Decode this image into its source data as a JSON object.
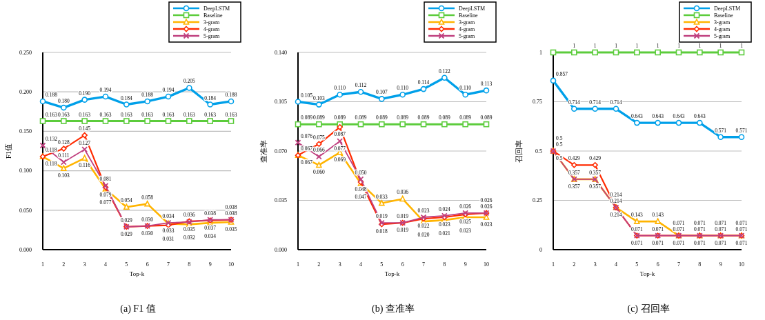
{
  "chart_data": [
    {
      "type": "line",
      "title": "(a) F1 值",
      "xlabel": "Top-k",
      "ylabel": "F1值",
      "categories": [
        "1",
        "2",
        "3",
        "4",
        "5",
        "6",
        "7",
        "8",
        "9",
        "10"
      ],
      "ylim": [
        0,
        0.25
      ],
      "yticks": [
        {
          "value": 0,
          "label": "0.000"
        },
        {
          "value": 0.05,
          "label": "0.050"
        },
        {
          "value": 0.1,
          "label": "0.100"
        },
        {
          "value": 0.15,
          "label": "0.150"
        },
        {
          "value": 0.2,
          "label": "0.200"
        },
        {
          "value": 0.25,
          "label": "0.250"
        }
      ],
      "grid": "y",
      "legend": "top right",
      "series": [
        {
          "name": "DeepLSTM",
          "color": "#00a0e9",
          "marker": "circle",
          "values": [
            0.188,
            0.18,
            0.19,
            0.194,
            0.184,
            0.188,
            0.194,
            0.205,
            0.184,
            0.188
          ],
          "value_labels": [
            "0.188",
            "0.180",
            "0.190",
            "0.194",
            "0.184",
            "0.188",
            "0.194",
            "0.205",
            "0.184",
            "0.188"
          ]
        },
        {
          "name": "Baseline",
          "color": "#5ccc3c",
          "marker": "square",
          "values": [
            0.163,
            0.163,
            0.163,
            0.163,
            0.163,
            0.163,
            0.163,
            0.163,
            0.163,
            0.163
          ],
          "value_labels": [
            "0.163",
            "0.163",
            "0.163",
            "0.163",
            "0.163",
            "0.163",
            "0.163",
            "0.163",
            "0.163",
            "0.163"
          ]
        },
        {
          "name": "3-gram",
          "color": "#ffb400",
          "marker": "triangle",
          "values": [
            0.118,
            0.103,
            0.116,
            0.077,
            0.054,
            0.058,
            0.033,
            0.032,
            0.034,
            0.035
          ],
          "value_labels": [
            "0.118",
            "0.103",
            "0.116",
            "0.077",
            "0.054",
            "0.058",
            "0.033",
            "0.032",
            "0.034",
            "0.035"
          ]
        },
        {
          "name": "4-gram",
          "color": "#ff2a00",
          "marker": "diamond",
          "values": [
            0.118,
            0.128,
            0.145,
            0.079,
            0.029,
            0.03,
            0.031,
            0.036,
            0.037,
            0.038
          ],
          "value_labels": [
            "0.118",
            "0.128",
            "0.145",
            "0.079",
            "0.029",
            "0.030",
            "0.031",
            "0.036",
            "0.037",
            "0.038"
          ]
        },
        {
          "name": "5-gram",
          "color": "#c0407f",
          "marker": "cross",
          "values": [
            0.132,
            0.111,
            0.127,
            0.081,
            0.029,
            0.03,
            0.034,
            0.035,
            0.038,
            0.038
          ],
          "value_labels": [
            "0.132",
            "0.111",
            "0.127",
            "0.081",
            "0.029",
            "0.030",
            "0.034",
            "0.035",
            "0.038",
            "0.038"
          ]
        }
      ]
    },
    {
      "type": "line",
      "title": "(b) 查准率",
      "xlabel": "Top-k",
      "ylabel": "查准率",
      "categories": [
        "1",
        "2",
        "3",
        "4",
        "5",
        "6",
        "7",
        "8",
        "9",
        "10"
      ],
      "ylim": [
        0,
        0.14
      ],
      "yticks": [
        {
          "value": 0,
          "label": "0.000"
        },
        {
          "value": 0.035,
          "label": "0.035"
        },
        {
          "value": 0.07,
          "label": "0.070"
        },
        {
          "value": 0.105,
          "label": "0.105"
        },
        {
          "value": 0.14,
          "label": "0.140"
        }
      ],
      "grid": "y",
      "legend": "top right",
      "series": [
        {
          "name": "DeepLSTM",
          "color": "#00a0e9",
          "marker": "circle",
          "values": [
            0.105,
            0.103,
            0.11,
            0.112,
            0.107,
            0.11,
            0.114,
            0.122,
            0.11,
            0.113
          ],
          "value_labels": [
            "0.105",
            "0.103",
            "0.110",
            "0.112",
            "0.107",
            "0.110",
            "0.114",
            "0.122",
            "0.110",
            "0.113"
          ]
        },
        {
          "name": "Baseline",
          "color": "#5ccc3c",
          "marker": "square",
          "values": [
            0.089,
            0.089,
            0.089,
            0.089,
            0.089,
            0.089,
            0.089,
            0.089,
            0.089,
            0.089
          ],
          "value_labels": [
            "0.089",
            "0.089",
            "0.089",
            "0.089",
            "0.089",
            "0.089",
            "0.089",
            "0.089",
            "0.089",
            "0.089"
          ]
        },
        {
          "name": "3-gram",
          "color": "#ffb400",
          "marker": "triangle",
          "values": [
            0.067,
            0.06,
            0.069,
            0.047,
            0.033,
            0.036,
            0.02,
            0.021,
            0.023,
            0.023
          ],
          "value_labels": [
            "0.067",
            "0.060",
            "0.069",
            "0.047",
            "0.033",
            "0.036",
            "0.020",
            "0.021",
            "0.023",
            "0.023"
          ]
        },
        {
          "name": "4-gram",
          "color": "#ff2a00",
          "marker": "diamond",
          "values": [
            0.067,
            0.075,
            0.087,
            0.048,
            0.018,
            0.019,
            0.022,
            0.023,
            0.025,
            0.026
          ],
          "value_labels": [
            "0.067",
            "0.075",
            "0.087",
            "0.048",
            "0.018",
            "0.019",
            "0.022",
            "0.023",
            "0.025",
            "0.026"
          ]
        },
        {
          "name": "5-gram",
          "color": "#c0407f",
          "marker": "cross",
          "values": [
            0.076,
            0.066,
            0.077,
            0.05,
            0.019,
            0.019,
            0.023,
            0.024,
            0.026,
            0.026
          ],
          "value_labels": [
            "0.076",
            "0.066",
            "0.077",
            "0.050",
            "0.019",
            "0.019",
            "0.023",
            "0.024",
            "0.026",
            "0.026"
          ]
        }
      ]
    },
    {
      "type": "line",
      "title": "(c) 召回率",
      "xlabel": "Top-k",
      "ylabel": "召回率",
      "categories": [
        "1",
        "2",
        "3",
        "4",
        "5",
        "6",
        "7",
        "8",
        "9",
        "10"
      ],
      "ylim": [
        0,
        1
      ],
      "yticks": [
        0,
        0.25,
        0.5,
        0.75,
        1
      ],
      "grid": "y",
      "legend": "top right",
      "series": [
        {
          "name": "DeepLSTM",
          "color": "#00a0e9",
          "marker": "circle",
          "values": [
            0.857,
            0.714,
            0.714,
            0.714,
            0.643,
            0.643,
            0.643,
            0.643,
            0.571,
            0.571
          ],
          "value_labels": [
            "0.857",
            "0.714",
            "0.714",
            "0.714",
            "0.643",
            "0.643",
            "0.643",
            "0.643",
            "0.571",
            "0.571"
          ]
        },
        {
          "name": "Baseline",
          "color": "#5ccc3c",
          "marker": "square",
          "values": [
            1,
            1,
            1,
            1,
            1,
            1,
            1,
            1,
            1,
            1
          ],
          "value_labels": [
            null,
            "1",
            "1",
            "1",
            "1",
            "1",
            "1",
            "1",
            "1",
            "1"
          ]
        },
        {
          "name": "3-gram",
          "color": "#ffb400",
          "marker": "triangle",
          "values": [
            0.5,
            0.357,
            0.357,
            0.214,
            0.143,
            0.143,
            0.071,
            0.071,
            0.071,
            0.071
          ],
          "value_labels": [
            "0.5",
            "0.357",
            "0.357",
            "0.214",
            "0.143",
            "0.143",
            "0.071",
            "0.071",
            "0.071",
            "0.071"
          ]
        },
        {
          "name": "4-gram",
          "color": "#ff2a00",
          "marker": "diamond",
          "values": [
            0.5,
            0.429,
            0.429,
            0.214,
            0.071,
            0.071,
            0.071,
            0.071,
            0.071,
            0.071
          ],
          "value_labels": [
            "0.5",
            "0.429",
            "0.429",
            "0.214",
            "0.071",
            "0.071",
            "0.071",
            "0.071",
            "0.071",
            "0.071"
          ]
        },
        {
          "name": "5-gram",
          "color": "#c0407f",
          "marker": "cross",
          "values": [
            0.5,
            0.357,
            0.357,
            0.214,
            0.071,
            0.071,
            0.071,
            0.071,
            0.071,
            0.071
          ],
          "value_labels": [
            "0.5",
            "0.357",
            "0.357",
            "0.214",
            "0.071",
            "0.071",
            "0.071",
            "0.071",
            "0.071",
            "0.071"
          ]
        }
      ]
    }
  ]
}
